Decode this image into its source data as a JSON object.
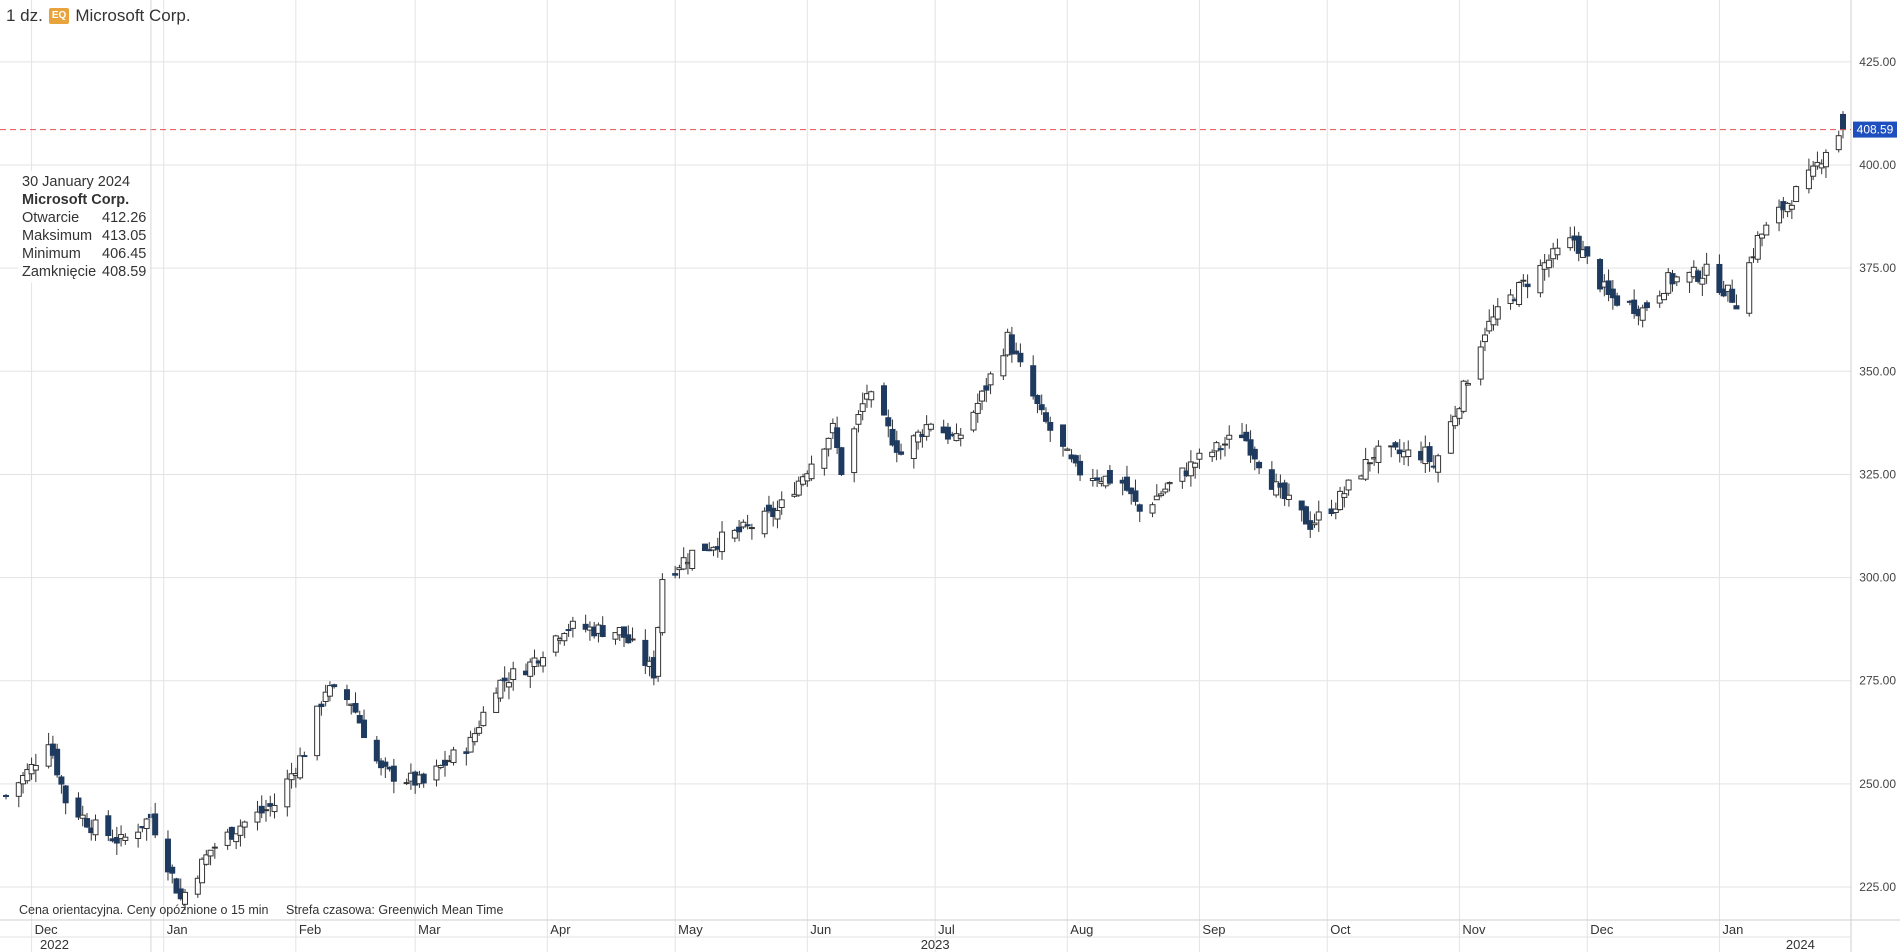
{
  "header": {
    "timeframe": "1 dz.",
    "badge": "EQ",
    "instrument": "Microsoft Corp."
  },
  "tooltip": {
    "date": "30 January 2024",
    "name": "Microsoft Corp.",
    "rows": [
      {
        "label": "Otwarcie",
        "value": "412.26"
      },
      {
        "label": "Maksimum",
        "value": "413.05"
      },
      {
        "label": "Minimum",
        "value": "406.45"
      },
      {
        "label": "Zamknięcie",
        "value": "408.59"
      }
    ]
  },
  "footnote": {
    "note": "Cena orientacyjna. Ceny opóźnione o 15 min",
    "timezone": "Strefa czasowa: Greenwich Mean Time"
  },
  "colors": {
    "up": "#ffffff",
    "down": "#1f3a5f",
    "wick": "#333333",
    "current_line": "#e05555",
    "price_tag": "#1d4fbf"
  },
  "chart_data": {
    "type": "candlestick",
    "title": "",
    "current_price": "408.59",
    "ylim": [
      217,
      440
    ],
    "y_ticks": [
      "225.00",
      "250.00",
      "275.00",
      "300.00",
      "325.00",
      "350.00",
      "375.00",
      "400.00",
      "425.00"
    ],
    "grid": true,
    "month_labels": [
      {
        "label": "Dec",
        "date": "2022-12-01"
      },
      {
        "label": "Jan",
        "date": "2023-01-01"
      },
      {
        "label": "Feb",
        "date": "2023-02-01"
      },
      {
        "label": "Mar",
        "date": "2023-03-01"
      },
      {
        "label": "Apr",
        "date": "2023-04-01"
      },
      {
        "label": "May",
        "date": "2023-05-01"
      },
      {
        "label": "Jun",
        "date": "2023-06-01"
      },
      {
        "label": "Jul",
        "date": "2023-07-01"
      },
      {
        "label": "Aug",
        "date": "2023-08-01"
      },
      {
        "label": "Sep",
        "date": "2023-09-01"
      },
      {
        "label": "Oct",
        "date": "2023-10-01"
      },
      {
        "label": "Nov",
        "date": "2023-11-01"
      },
      {
        "label": "Dec",
        "date": "2023-12-01"
      },
      {
        "label": "Jan",
        "date": "2024-01-01"
      }
    ],
    "year_labels": [
      {
        "label": "2022",
        "date": "2022-11-25"
      },
      {
        "label": "2023",
        "date": "2023-07-01"
      },
      {
        "label": "2024",
        "date": "2024-01-20"
      }
    ],
    "ohlc_anchors": [
      {
        "date": "2022-11-25",
        "close": 247
      },
      {
        "date": "2022-12-01",
        "close": 254
      },
      {
        "date": "2022-12-05",
        "close": 261
      },
      {
        "date": "2022-12-09",
        "close": 246
      },
      {
        "date": "2022-12-15",
        "close": 240
      },
      {
        "date": "2022-12-22",
        "close": 236
      },
      {
        "date": "2022-12-29",
        "close": 242
      },
      {
        "date": "2023-01-05",
        "close": 222
      },
      {
        "date": "2023-01-12",
        "close": 234
      },
      {
        "date": "2023-01-19",
        "close": 240
      },
      {
        "date": "2023-01-27",
        "close": 245
      },
      {
        "date": "2023-02-03",
        "close": 258
      },
      {
        "date": "2023-02-08",
        "close": 273
      },
      {
        "date": "2023-02-14",
        "close": 270
      },
      {
        "date": "2023-02-21",
        "close": 253
      },
      {
        "date": "2023-03-03",
        "close": 250
      },
      {
        "date": "2023-03-08",
        "close": 255
      },
      {
        "date": "2023-03-14",
        "close": 260
      },
      {
        "date": "2023-03-20",
        "close": 274
      },
      {
        "date": "2023-03-28",
        "close": 279
      },
      {
        "date": "2023-04-05",
        "close": 288
      },
      {
        "date": "2023-04-18",
        "close": 287
      },
      {
        "date": "2023-04-26",
        "close": 277
      },
      {
        "date": "2023-04-28",
        "close": 300
      },
      {
        "date": "2023-05-05",
        "close": 306
      },
      {
        "date": "2023-05-18",
        "close": 312
      },
      {
        "date": "2023-05-25",
        "close": 316
      },
      {
        "date": "2023-05-31",
        "close": 325
      },
      {
        "date": "2023-06-07",
        "close": 336
      },
      {
        "date": "2023-06-09",
        "close": 326
      },
      {
        "date": "2023-06-15",
        "close": 345
      },
      {
        "date": "2023-06-23",
        "close": 330
      },
      {
        "date": "2023-06-30",
        "close": 338
      },
      {
        "date": "2023-07-06",
        "close": 333
      },
      {
        "date": "2023-07-12",
        "close": 344
      },
      {
        "date": "2023-07-18",
        "close": 358
      },
      {
        "date": "2023-07-26",
        "close": 339
      },
      {
        "date": "2023-08-03",
        "close": 326
      },
      {
        "date": "2023-08-14",
        "close": 323
      },
      {
        "date": "2023-08-18",
        "close": 316
      },
      {
        "date": "2023-08-31",
        "close": 328
      },
      {
        "date": "2023-09-11",
        "close": 335
      },
      {
        "date": "2023-09-20",
        "close": 320
      },
      {
        "date": "2023-09-27",
        "close": 313
      },
      {
        "date": "2023-10-03",
        "close": 318
      },
      {
        "date": "2023-10-12",
        "close": 330
      },
      {
        "date": "2023-10-24",
        "close": 330
      },
      {
        "date": "2023-10-26",
        "close": 327
      },
      {
        "date": "2023-10-31",
        "close": 340
      },
      {
        "date": "2023-11-07",
        "close": 360
      },
      {
        "date": "2023-11-14",
        "close": 369
      },
      {
        "date": "2023-11-22",
        "close": 377
      },
      {
        "date": "2023-11-28",
        "close": 382
      },
      {
        "date": "2023-12-06",
        "close": 368
      },
      {
        "date": "2023-12-14",
        "close": 365
      },
      {
        "date": "2023-12-20",
        "close": 372
      },
      {
        "date": "2023-12-29",
        "close": 374
      },
      {
        "date": "2024-01-05",
        "close": 367
      },
      {
        "date": "2024-01-10",
        "close": 382
      },
      {
        "date": "2024-01-17",
        "close": 391
      },
      {
        "date": "2024-01-23",
        "close": 398
      },
      {
        "date": "2024-01-26",
        "close": 404
      },
      {
        "date": "2024-01-30",
        "open": 412.26,
        "high": 413.05,
        "low": 406.45,
        "close": 408.59
      }
    ]
  }
}
